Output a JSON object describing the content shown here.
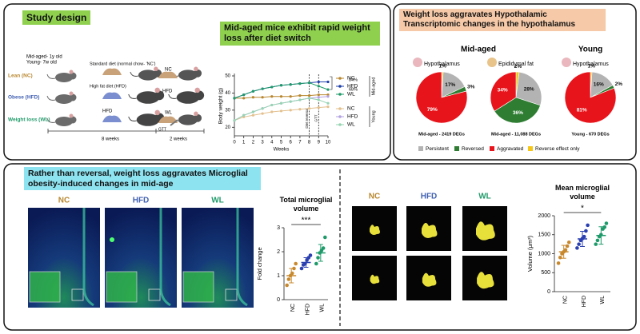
{
  "figure": {
    "design": {
      "label": "Study design",
      "ages": [
        "Mid-aged- 1y old",
        "Young- 7w old"
      ],
      "groups": [
        "Lean (NC)",
        "Obese (HFD)",
        "Weight loss (WL)"
      ],
      "standard_diet": "Standard diet (normal chow- 'NC')",
      "high_fat_diet": "High fat diet (HFD)",
      "arm_labels": [
        "NC",
        "HFD",
        "HFD",
        "WL"
      ],
      "durations": [
        "8 weeks",
        "2 weeks"
      ],
      "test": "GTT"
    },
    "weight_title": "Mid-aged mice exhibit rapid weight loss after diet switch",
    "transcriptome": {
      "title": "Weight loss aggravates Hypothalamic Transcriptomic changes in the hypothalamus",
      "headers": [
        "Mid-aged",
        "Young"
      ]
    },
    "microglia": {
      "title": "Rather than reversal, weight loss aggravates Microglial obesity-induced changes in mid-age",
      "image_labels": [
        "NC",
        "HFD",
        "WL"
      ],
      "image_labels_right": [
        "NC",
        "HFD",
        "WL"
      ]
    }
  },
  "chart_data": [
    {
      "type": "line",
      "y_label": "Body weight (g)",
      "x_label": "Weeks",
      "x": [
        0,
        1,
        2,
        3,
        4,
        5,
        6,
        7,
        8,
        9,
        10
      ],
      "xlim": [
        0,
        10
      ],
      "xticks": [
        0,
        1,
        2,
        3,
        4,
        5,
        6,
        7,
        8,
        9,
        10
      ],
      "ylim": [
        15,
        50
      ],
      "yticks": [
        20,
        30,
        40,
        50
      ],
      "groups": [
        "Mid-aged",
        "Young"
      ],
      "series": [
        {
          "name": "NC",
          "color": "#b8862e",
          "values": [
            37,
            37,
            37.5,
            37.5,
            38,
            38,
            38,
            38.5,
            38.5,
            39,
            39
          ]
        },
        {
          "name": "HFD",
          "color": "#1f3fa8",
          "values": [
            37,
            39,
            41,
            42.5,
            43.5,
            44.5,
            45,
            45.5,
            46,
            46.5,
            46.5
          ]
        },
        {
          "name": "WL",
          "color": "#1f9a6a",
          "values": [
            37,
            39,
            41,
            42.5,
            43.5,
            44.5,
            45,
            45.5,
            46,
            44,
            42
          ]
        },
        {
          "name": "NC",
          "color": "#e3c08e",
          "values": [
            24,
            26,
            27,
            28,
            29,
            29.5,
            30,
            30.5,
            31,
            31.5,
            32
          ]
        },
        {
          "name": "HFD",
          "color": "#b3a2e0",
          "values": [
            24,
            27,
            29,
            31,
            33,
            34,
            35,
            36,
            37,
            37.5,
            38
          ]
        },
        {
          "name": "WL",
          "color": "#96d4b2",
          "values": [
            24,
            27,
            29,
            31,
            33,
            34,
            35,
            36,
            37,
            36,
            34
          ]
        }
      ],
      "vlines": [
        {
          "x": 8,
          "label": "Diet reversal"
        },
        {
          "x": 9,
          "label": "GTT"
        }
      ],
      "annotations": [
        "84%",
        "68%"
      ]
    },
    {
      "type": "pie",
      "title": "Hypothalamus",
      "caption": "Mid-aged - 2419 DEGs",
      "categories": [
        "Reverse effect only",
        "Persistent",
        "Reversed",
        "Aggravated"
      ],
      "colors": [
        "#f5c518",
        "#b3b3b3",
        "#2e7d32",
        "#e8141b"
      ],
      "values": [
        1,
        17,
        3,
        79
      ],
      "value_labels": [
        "1%",
        "17%",
        "3%",
        "79%"
      ]
    },
    {
      "type": "pie",
      "title": "Epididymal fat",
      "caption": "Mid-aged - 11,088 DEGs",
      "categories": [
        "Reverse effect only",
        "Persistent",
        "Reversed",
        "Aggravated"
      ],
      "colors": [
        "#f5c518",
        "#b3b3b3",
        "#2e7d32",
        "#e8141b"
      ],
      "values": [
        2,
        28,
        36,
        34
      ],
      "value_labels": [
        "2%",
        "28%",
        "36%",
        "34%"
      ]
    },
    {
      "type": "pie",
      "title": "Hypothalamus",
      "caption": "Young - 670 DEGs",
      "categories": [
        "Reverse effect only",
        "Persistent",
        "Reversed",
        "Aggravated"
      ],
      "colors": [
        "#f5c518",
        "#b3b3b3",
        "#2e7d32",
        "#e8141b"
      ],
      "values": [
        1,
        16,
        2,
        81
      ],
      "value_labels": [
        "1%",
        "16%",
        "2%",
        "81%"
      ]
    },
    {
      "type": "dot",
      "title": "Total microglial volume",
      "y_label": "Fold change",
      "categories": [
        "NC",
        "HFD",
        "WL"
      ],
      "colors": [
        "#c8892e",
        "#2a3fb0",
        "#1f9a6a"
      ],
      "points": [
        [
          0.6,
          0.85,
          1.0,
          1.1,
          1.3,
          1.5
        ],
        [
          1.3,
          1.45,
          1.5,
          1.65,
          1.75,
          1.85
        ],
        [
          1.5,
          1.75,
          1.95,
          2.05,
          2.15,
          2.6
        ]
      ],
      "values": [
        1.0,
        1.55,
        1.95
      ],
      "errors": [
        0.3,
        0.2,
        0.35
      ],
      "ylim": [
        0,
        3
      ],
      "yticks": [
        0,
        1,
        2,
        3
      ],
      "significance": "***"
    },
    {
      "type": "dot",
      "title": "Mean microglial volume",
      "y_label": "Volume (μm³)",
      "categories": [
        "NC",
        "HFD",
        "WL"
      ],
      "colors": [
        "#c8892e",
        "#2a3fb0",
        "#1f9a6a"
      ],
      "points": [
        [
          750,
          900,
          1000,
          1050,
          1100,
          1200,
          1300
        ],
        [
          1150,
          1250,
          1350,
          1400,
          1450,
          1600,
          1750
        ],
        [
          1250,
          1350,
          1450,
          1500,
          1650,
          1700,
          1800
        ]
      ],
      "values": [
        1050,
        1390,
        1480
      ],
      "errors": [
        170,
        200,
        230
      ],
      "ylim": [
        0,
        2000
      ],
      "yticks": [
        0,
        500,
        1000,
        1500,
        2000
      ],
      "significance": "*"
    }
  ]
}
